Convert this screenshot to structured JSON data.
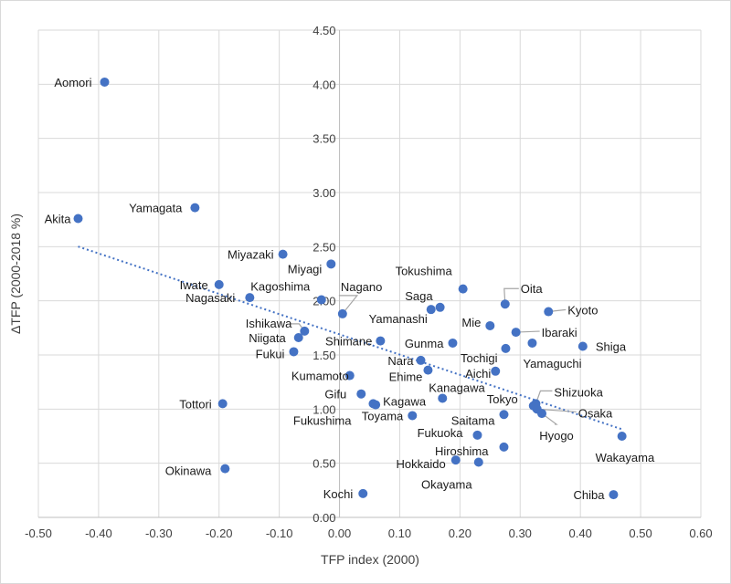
{
  "chart_data": {
    "type": "scatter",
    "title": "",
    "xlabel": "TFP index (2000)",
    "ylabel": "ΔTFP (2000-2018 %)",
    "xlim": [
      -0.5,
      0.6
    ],
    "ylim": [
      0,
      4.5
    ],
    "xticks": [
      "-0.50",
      "-0.40",
      "-0.30",
      "-0.20",
      "-0.10",
      "0.00",
      "0.10",
      "0.20",
      "0.30",
      "0.40",
      "0.50",
      "0.60"
    ],
    "yticks": [
      "0.00",
      "0.50",
      "1.00",
      "1.50",
      "2.00",
      "2.50",
      "3.00",
      "3.50",
      "4.00",
      "4.50"
    ],
    "grid": true,
    "trendline": {
      "type": "linear",
      "style": "dotted",
      "color": "#4472C4"
    },
    "marker_color": "#4472C4",
    "points": [
      {
        "name": "Aomori",
        "x": -0.39,
        "y": 4.02
      },
      {
        "name": "Akita",
        "x": -0.434,
        "y": 2.76
      },
      {
        "name": "Yamagata",
        "x": -0.24,
        "y": 2.86
      },
      {
        "name": "Miyazaki",
        "x": -0.094,
        "y": 2.43
      },
      {
        "name": "Miyagi",
        "x": -0.014,
        "y": 2.34
      },
      {
        "name": "Iwate",
        "x": -0.2,
        "y": 2.15
      },
      {
        "name": "Nagasaki",
        "x": -0.149,
        "y": 2.03
      },
      {
        "name": "Kagoshima",
        "x": -0.03,
        "y": 2.01
      },
      {
        "name": "Nagano",
        "x": 0.005,
        "y": 1.88
      },
      {
        "name": "Ishikawa",
        "x": -0.058,
        "y": 1.72
      },
      {
        "name": "Niigata",
        "x": -0.068,
        "y": 1.66
      },
      {
        "name": "Fukui",
        "x": -0.076,
        "y": 1.53
      },
      {
        "name": "Shimane",
        "x": 0.068,
        "y": 1.63
      },
      {
        "name": "Yamanashi",
        "x": 0.152,
        "y": 1.92
      },
      {
        "name": "Saga",
        "x": 0.167,
        "y": 1.94
      },
      {
        "name": "Tokushima",
        "x": 0.205,
        "y": 2.11
      },
      {
        "name": "Oita",
        "x": 0.275,
        "y": 1.97
      },
      {
        "name": "Kyoto",
        "x": 0.347,
        "y": 1.9
      },
      {
        "name": "Mie",
        "x": 0.25,
        "y": 1.77
      },
      {
        "name": "Ibaraki",
        "x": 0.293,
        "y": 1.71
      },
      {
        "name": "Gunma",
        "x": 0.188,
        "y": 1.61
      },
      {
        "name": "Yamaguchi",
        "x": 0.32,
        "y": 1.61
      },
      {
        "name": "Shiga",
        "x": 0.404,
        "y": 1.58
      },
      {
        "name": "Tochigi",
        "x": 0.276,
        "y": 1.56
      },
      {
        "name": "Aichi",
        "x": 0.259,
        "y": 1.35
      },
      {
        "name": "Nara",
        "x": 0.135,
        "y": 1.45
      },
      {
        "name": "Ehime",
        "x": 0.147,
        "y": 1.36
      },
      {
        "name": "Kanagawa",
        "x": 0.171,
        "y": 1.1
      },
      {
        "name": "Kumamoto",
        "x": 0.017,
        "y": 1.31
      },
      {
        "name": "Gifu",
        "x": 0.036,
        "y": 1.14
      },
      {
        "name": "Fukushima",
        "x": 0.056,
        "y": 1.05
      },
      {
        "name": "Kagawa",
        "x": 0.06,
        "y": 1.04
      },
      {
        "name": "Toyama",
        "x": 0.121,
        "y": 0.94
      },
      {
        "name": "Tokyo",
        "x": 0.322,
        "y": 1.03
      },
      {
        "name": "Shizuoka",
        "x": 0.326,
        "y": 1.05
      },
      {
        "name": "Osaka",
        "x": 0.328,
        "y": 1.0
      },
      {
        "name": "Hyogo",
        "x": 0.336,
        "y": 0.96
      },
      {
        "name": "Saitama",
        "x": 0.273,
        "y": 0.95
      },
      {
        "name": "Fukuoka",
        "x": 0.229,
        "y": 0.76
      },
      {
        "name": "Hiroshima",
        "x": 0.273,
        "y": 0.65
      },
      {
        "name": "Hokkaido",
        "x": 0.193,
        "y": 0.53
      },
      {
        "name": "Okayama",
        "x": 0.231,
        "y": 0.51
      },
      {
        "name": "Wakayama",
        "x": 0.469,
        "y": 0.75
      },
      {
        "name": "Chiba",
        "x": 0.455,
        "y": 0.21
      },
      {
        "name": "Tottori",
        "x": -0.194,
        "y": 1.05
      },
      {
        "name": "Okinawa",
        "x": -0.19,
        "y": 0.45
      },
      {
        "name": "Kochi",
        "x": 0.039,
        "y": 0.22
      }
    ]
  }
}
